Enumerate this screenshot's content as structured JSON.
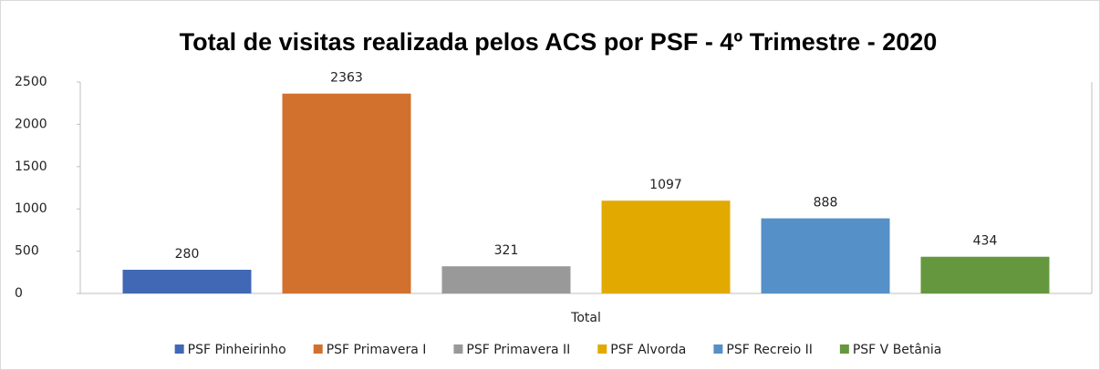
{
  "chart_data": {
    "type": "bar",
    "title": "Total de visitas realizada pelos ACS por PSF - 4º Trimestre - 2020",
    "categories": [
      "Total"
    ],
    "series": [
      {
        "name": "PSF Pinheirinho",
        "color": "#4068b4",
        "values": [
          280
        ]
      },
      {
        "name": "PSF Primavera I",
        "color": "#d2712e",
        "values": [
          2363
        ]
      },
      {
        "name": "PSF Primavera II",
        "color": "#999999",
        "values": [
          321
        ]
      },
      {
        "name": "PSF Alvorda",
        "color": "#e2aa00",
        "values": [
          1097
        ]
      },
      {
        "name": "PSF Recreio II",
        "color": "#5590c8",
        "values": [
          888
        ]
      },
      {
        "name": "PSF V Betânia",
        "color": "#65983e",
        "values": [
          434
        ]
      }
    ],
    "ylim": [
      0,
      2500
    ],
    "yticks": [
      0,
      500,
      1000,
      1500,
      2000,
      2500
    ],
    "grid": false,
    "legend": "bottom",
    "data_labels": true
  }
}
